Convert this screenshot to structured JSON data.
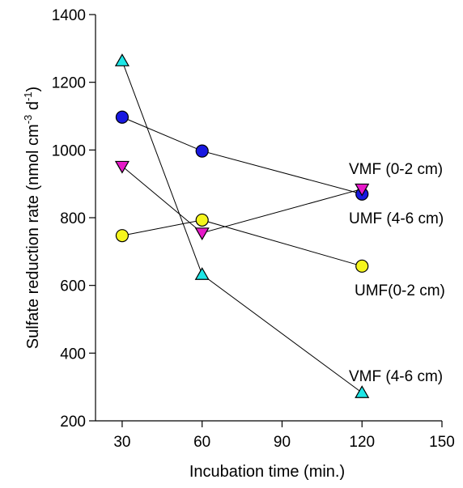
{
  "chart_data": {
    "type": "scatter",
    "xlabel": "Incubation time (min.)",
    "ylabel": {
      "text": "Sulfate reduction rate (nmol cm",
      "sup1": "-3",
      "mid": " d",
      "sup2": "-1",
      "end": ")"
    },
    "xlim": [
      20,
      150
    ],
    "ylim": [
      200,
      1400
    ],
    "xticks": [
      30,
      60,
      90,
      120,
      150
    ],
    "yticks": [
      200,
      400,
      600,
      800,
      1000,
      1200,
      1400
    ],
    "grid": false,
    "series": [
      {
        "name": "UMF (4-6 cm)",
        "marker": "circle",
        "color": "#1818e0",
        "x": [
          30,
          60,
          120
        ],
        "y": [
          1097,
          997,
          870
        ]
      },
      {
        "name": "UMF(0-2 cm)",
        "marker": "circle",
        "color": "#f5f51e",
        "x": [
          30,
          60,
          120
        ],
        "y": [
          747,
          793,
          657
        ]
      },
      {
        "name": "VMF (0-2 cm)",
        "marker": "triangle-down",
        "color": "#e619c8",
        "x": [
          30,
          60,
          120
        ],
        "y": [
          952,
          755,
          885
        ]
      },
      {
        "name": "VMF (4-6 cm)",
        "marker": "triangle-up",
        "color": "#1ee6e6",
        "x": [
          30,
          60,
          120
        ],
        "y": [
          1263,
          632,
          283
        ]
      }
    ]
  }
}
